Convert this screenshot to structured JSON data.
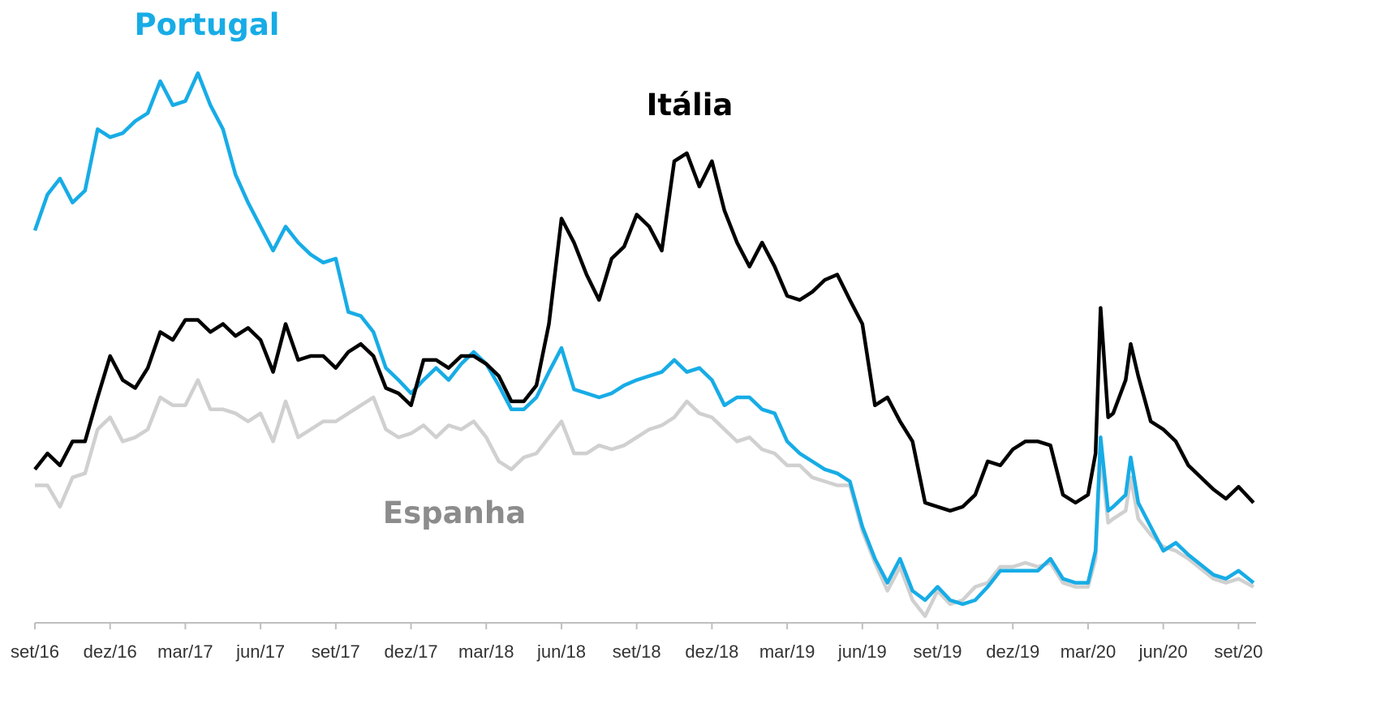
{
  "chart_data": {
    "type": "line",
    "x": [
      0,
      0.5,
      1,
      1.5,
      2,
      2.5,
      3,
      3.5,
      4,
      4.5,
      5,
      5.5,
      6,
      6.5,
      7,
      7.5,
      8,
      8.5,
      9,
      9.5,
      10,
      10.5,
      11,
      11.5,
      12,
      12.5,
      13,
      13.5,
      14,
      14.5,
      15,
      15.5,
      16,
      16.5,
      17,
      17.5,
      18,
      18.5,
      19,
      19.5,
      20,
      20.5,
      21,
      21.5,
      22,
      22.5,
      23,
      23.5,
      24,
      24.5,
      25,
      25.5,
      26,
      26.5,
      27,
      27.5,
      28,
      28.5,
      29,
      29.5,
      30,
      30.5,
      31,
      31.5,
      32,
      32.5,
      33,
      33.5,
      34,
      34.5,
      35,
      35.5,
      36,
      36.5,
      37,
      37.5,
      38,
      38.5,
      39,
      39.5,
      40,
      40.5,
      41,
      41.5,
      42,
      42.3,
      42.5,
      42.8,
      43,
      43.5,
      43.7,
      44,
      44.5,
      45,
      45.5,
      46,
      47,
      47.5,
      48,
      48.6
    ],
    "series": [
      {
        "name": "Portugal",
        "color": "#17ace6",
        "values": [
          2.99,
          3.26,
          3.38,
          3.2,
          3.29,
          3.75,
          3.69,
          3.72,
          3.81,
          3.87,
          4.11,
          3.93,
          3.96,
          4.17,
          3.93,
          3.75,
          3.41,
          3.2,
          3.02,
          2.84,
          3.02,
          2.9,
          2.81,
          2.75,
          2.78,
          2.38,
          2.35,
          2.23,
          1.96,
          1.87,
          1.77,
          1.87,
          1.96,
          1.87,
          1.99,
          2.08,
          1.99,
          1.83,
          1.65,
          1.65,
          1.74,
          1.93,
          2.11,
          1.8,
          1.77,
          1.74,
          1.77,
          1.83,
          1.87,
          1.9,
          1.93,
          2.02,
          1.93,
          1.96,
          1.87,
          1.68,
          1.74,
          1.74,
          1.65,
          1.62,
          1.41,
          1.32,
          1.26,
          1.2,
          1.17,
          1.11,
          0.77,
          0.53,
          0.35,
          0.53,
          0.29,
          0.22,
          0.32,
          0.22,
          0.19,
          0.22,
          0.32,
          0.44,
          0.44,
          0.44,
          0.44,
          0.53,
          0.38,
          0.35,
          0.35,
          0.59,
          1.44,
          0.89,
          0.92,
          1.01,
          1.29,
          0.95,
          0.77,
          0.59,
          0.65,
          0.56,
          0.41,
          0.38,
          0.44,
          0.35
        ]
      },
      {
        "name": "Itália",
        "color": "#000000",
        "values": [
          1.2,
          1.32,
          1.23,
          1.41,
          1.41,
          1.74,
          2.05,
          1.87,
          1.81,
          1.96,
          2.23,
          2.17,
          2.32,
          2.32,
          2.23,
          2.29,
          2.2,
          2.26,
          2.17,
          1.93,
          2.29,
          2.02,
          2.05,
          2.05,
          1.96,
          2.08,
          2.14,
          2.05,
          1.81,
          1.77,
          1.68,
          2.02,
          2.02,
          1.96,
          2.05,
          2.05,
          1.99,
          1.9,
          1.71,
          1.71,
          1.83,
          2.29,
          3.08,
          2.9,
          2.66,
          2.47,
          2.78,
          2.87,
          3.11,
          3.02,
          2.84,
          3.51,
          3.57,
          3.32,
          3.51,
          3.14,
          2.9,
          2.72,
          2.9,
          2.72,
          2.5,
          2.47,
          2.53,
          2.62,
          2.66,
          2.47,
          2.29,
          1.68,
          1.74,
          1.56,
          1.41,
          0.95,
          0.92,
          0.89,
          0.92,
          1.01,
          1.26,
          1.23,
          1.35,
          1.41,
          1.41,
          1.38,
          1.01,
          0.95,
          1.01,
          1.32,
          2.41,
          1.59,
          1.62,
          1.87,
          2.14,
          1.9,
          1.56,
          1.5,
          1.41,
          1.23,
          1.05,
          0.98,
          1.07,
          0.95
        ]
      },
      {
        "name": "Espanha",
        "color": "#d0d0d0",
        "values": [
          1.08,
          1.08,
          0.92,
          1.14,
          1.17,
          1.5,
          1.59,
          1.41,
          1.44,
          1.5,
          1.74,
          1.68,
          1.68,
          1.87,
          1.65,
          1.65,
          1.62,
          1.56,
          1.62,
          1.41,
          1.71,
          1.44,
          1.5,
          1.56,
          1.56,
          1.62,
          1.68,
          1.74,
          1.5,
          1.44,
          1.47,
          1.53,
          1.44,
          1.53,
          1.5,
          1.56,
          1.44,
          1.26,
          1.2,
          1.29,
          1.32,
          1.44,
          1.56,
          1.32,
          1.32,
          1.38,
          1.35,
          1.38,
          1.44,
          1.5,
          1.53,
          1.59,
          1.71,
          1.62,
          1.59,
          1.5,
          1.41,
          1.44,
          1.35,
          1.32,
          1.23,
          1.23,
          1.14,
          1.11,
          1.08,
          1.08,
          0.74,
          0.5,
          0.29,
          0.47,
          0.22,
          0.1,
          0.29,
          0.19,
          0.22,
          0.32,
          0.35,
          0.47,
          0.47,
          0.5,
          0.47,
          0.5,
          0.35,
          0.32,
          0.32,
          0.53,
          1.32,
          0.8,
          0.83,
          0.89,
          1.14,
          0.83,
          0.71,
          0.62,
          0.59,
          0.53,
          0.38,
          0.35,
          0.38,
          0.32
        ]
      }
    ],
    "xlim": [
      0,
      48.7
    ],
    "xticks": [
      {
        "value": 0,
        "label": "set/16"
      },
      {
        "value": 3,
        "label": "dez/16"
      },
      {
        "value": 6,
        "label": "mar/17"
      },
      {
        "value": 9,
        "label": "jun/17"
      },
      {
        "value": 12,
        "label": "set/17"
      },
      {
        "value": 15,
        "label": "dez/17"
      },
      {
        "value": 18,
        "label": "mar/18"
      },
      {
        "value": 21,
        "label": "jun/18"
      },
      {
        "value": 24,
        "label": "set/18"
      },
      {
        "value": 27,
        "label": "dez/18"
      },
      {
        "value": 30,
        "label": "mar/19"
      },
      {
        "value": 33,
        "label": "jun/19"
      },
      {
        "value": 36,
        "label": "set/19"
      },
      {
        "value": 39,
        "label": "dez/19"
      },
      {
        "value": 42,
        "label": "mar/20"
      },
      {
        "value": 45,
        "label": "jun/20"
      },
      {
        "value": 48,
        "label": "set/20"
      }
    ],
    "ylim": [
      0.05,
      4.7
    ]
  }
}
